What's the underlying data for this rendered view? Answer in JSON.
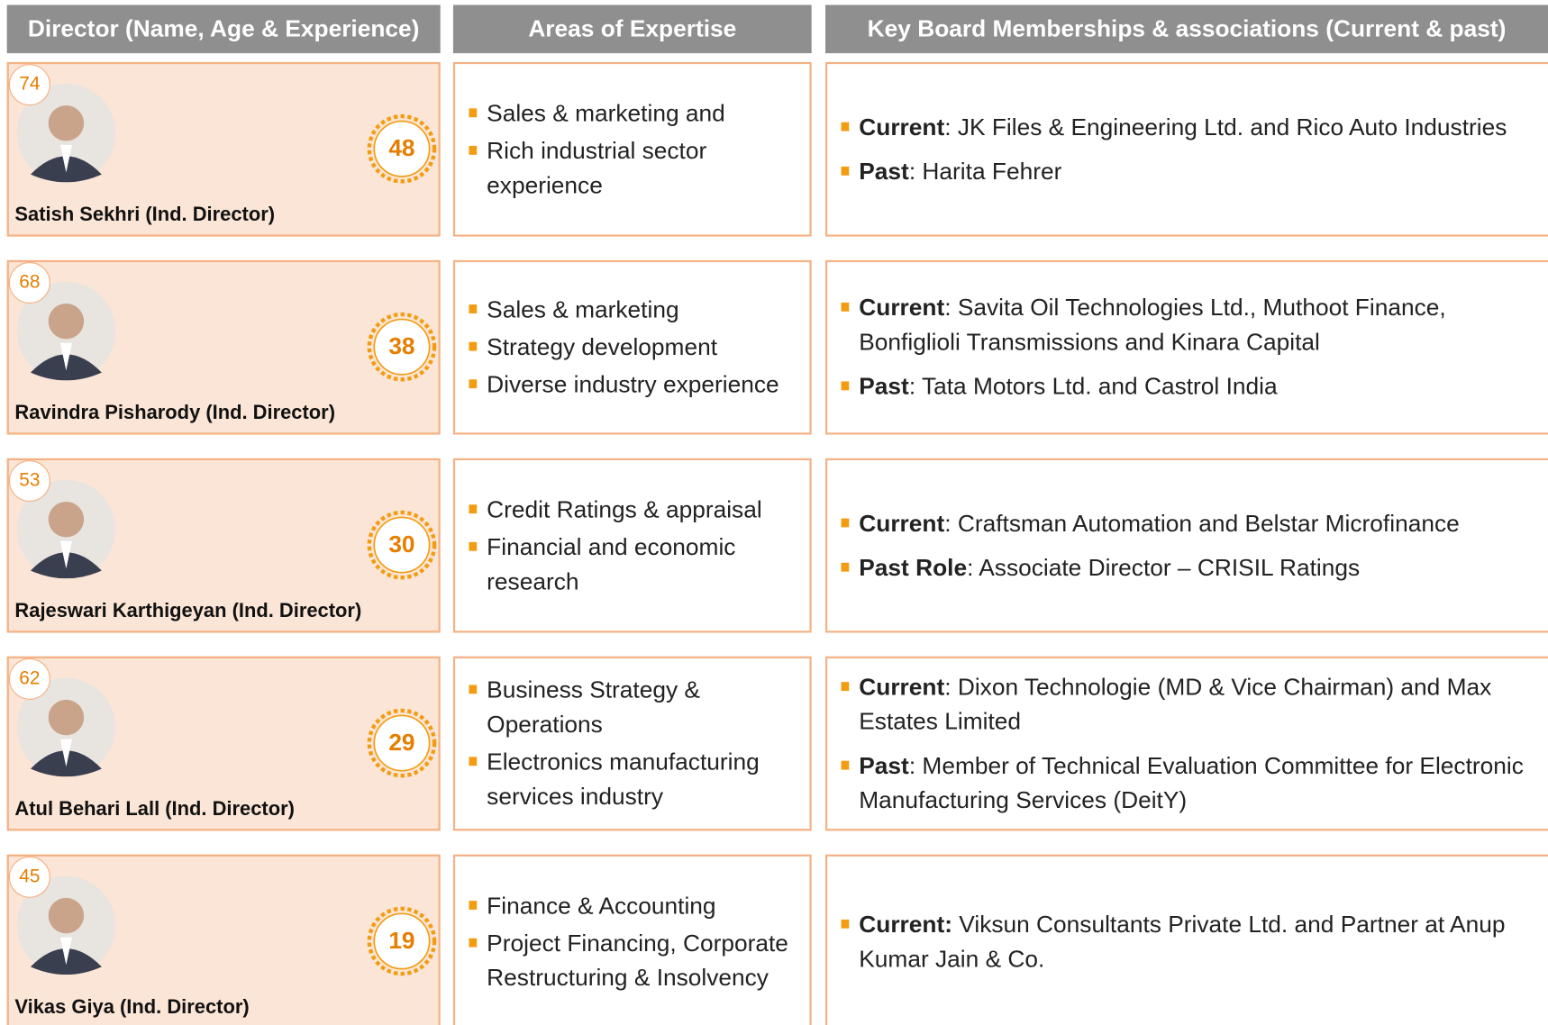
{
  "header": {
    "columns": [
      "Director (Name, Age & Experience)",
      "Areas of Expertise",
      "Key Board Memberships & associations (Current & past)"
    ]
  },
  "rows": [
    {
      "age": "74",
      "experience": "48",
      "name": "Satish Sekhri (Ind. Director)",
      "expertise": [
        "Sales & marketing and",
        "Rich industrial sector experience"
      ],
      "memberships": [
        {
          "label": "Current",
          "text": ": JK Files & Engineering Ltd. and Rico Auto Industries"
        },
        {
          "label": "Past",
          "text": ": Harita Fehrer"
        }
      ]
    },
    {
      "age": "68",
      "experience": "38",
      "name": "Ravindra Pisharody (Ind. Director)",
      "expertise": [
        "Sales & marketing",
        "Strategy development",
        "Diverse industry experience"
      ],
      "memberships": [
        {
          "label": "Current",
          "text": ": Savita Oil Technologies Ltd., Muthoot Finance, Bonfiglioli Transmissions and Kinara Capital"
        },
        {
          "label": "Past",
          "text": ": Tata Motors Ltd. and Castrol India"
        }
      ]
    },
    {
      "age": "53",
      "experience": "30",
      "name": "Rajeswari Karthigeyan (Ind. Director)",
      "expertise": [
        "Credit Ratings & appraisal",
        "Financial and economic research"
      ],
      "memberships": [
        {
          "label": "Current",
          "text": ": Craftsman Automation and Belstar Microfinance"
        },
        {
          "label": "Past Role",
          "text": ": Associate Director – CRISIL Ratings"
        }
      ]
    },
    {
      "age": "62",
      "experience": "29",
      "name": "Atul Behari Lall (Ind. Director)",
      "expertise": [
        "Business Strategy & Operations",
        "Electronics manufacturing services industry"
      ],
      "memberships": [
        {
          "label": "Current",
          "text": ": Dixon Technologie (MD & Vice Chairman) and Max Estates Limited"
        },
        {
          "label": "Past",
          "text": ": Member of Technical Evaluation Committee for Electronic Manufacturing Services (DeitY)"
        }
      ]
    },
    {
      "age": "45",
      "experience": "19",
      "name": "Vikas Giya (Ind. Director)",
      "expertise": [
        "Finance & Accounting",
        "Project Financing, Corporate Restructuring & Insolvency"
      ],
      "memberships": [
        {
          "label": "Current:",
          "text": " Viksun Consultants Private Ltd. and Partner at Anup Kumar Jain & Co."
        }
      ]
    }
  ]
}
